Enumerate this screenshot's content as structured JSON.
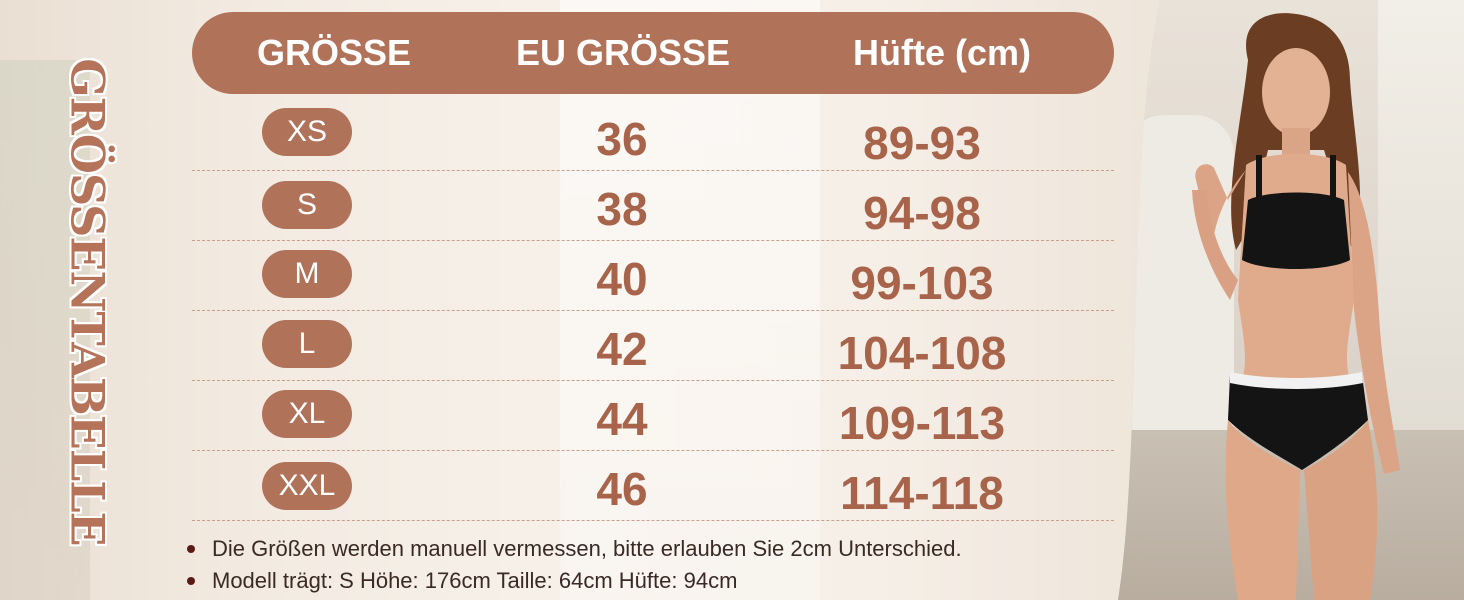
{
  "title": "GRÖSSENTABELLE",
  "headers": [
    "GRÖSSE",
    "EU GRÖSSE",
    "Hüfte (cm)"
  ],
  "rows": [
    {
      "size": "XS",
      "eu": "36",
      "hip": "89-93"
    },
    {
      "size": "S",
      "eu": "38",
      "hip": "94-98"
    },
    {
      "size": "M",
      "eu": "40",
      "hip": "99-103"
    },
    {
      "size": "L",
      "eu": "42",
      "hip": "104-108"
    },
    {
      "size": "XL",
      "eu": "44",
      "hip": "109-113"
    },
    {
      "size": "XXL",
      "eu": "46",
      "hip": "114-118"
    }
  ],
  "notes": [
    "Die Größen werden manuell vermessen, bitte erlauben Sie 2cm Unterschied.",
    "Modell trägt: S  Höhe: 176cm Taille: 64cm Hüfte: 94cm"
  ],
  "colors": {
    "accent": "#b1725a",
    "value_text": "#a7644b",
    "background": "#f3ebe2",
    "note_text": "#3a2a24"
  }
}
